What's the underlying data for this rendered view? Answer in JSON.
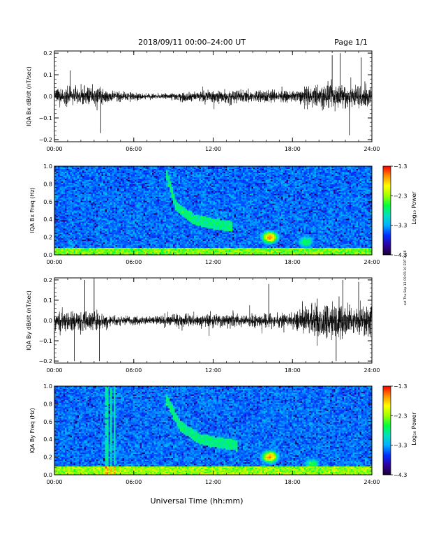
{
  "header": {
    "title": "2018/09/11  00:00–24:00 UT",
    "page": "Page 1/1"
  },
  "xlabel": "Universal Time (hh:mm)",
  "side_note": "ext Thu Sep 13 09:05:10 EDT 2018",
  "chart_data": [
    {
      "type": "line",
      "title": "",
      "xlabel": "",
      "ylabel": "IQA Bx dB/dt (nT/sec)",
      "x_ticks": [
        "00:00",
        "06:00",
        "12:00",
        "18:00",
        "24:00"
      ],
      "x_tick_values": [
        0,
        6,
        12,
        18,
        24
      ],
      "xlim": [
        0,
        24
      ],
      "y_ticks": [
        "0.2",
        "0.1",
        "0.0",
        "−0.1",
        "−0.2"
      ],
      "y_tick_values": [
        0.2,
        0.1,
        0.0,
        -0.1,
        -0.2
      ],
      "ylim": [
        -0.21,
        0.21
      ],
      "envelope_hours": [
        0,
        1,
        2,
        3,
        4,
        5,
        6,
        7,
        8,
        9,
        10,
        11,
        12,
        13,
        14,
        15,
        16,
        17,
        18,
        19,
        20,
        21,
        22,
        23,
        24
      ],
      "envelope_amplitude": [
        0.04,
        0.06,
        0.05,
        0.06,
        0.04,
        0.03,
        0.025,
        0.02,
        0.015,
        0.025,
        0.03,
        0.035,
        0.04,
        0.045,
        0.04,
        0.04,
        0.045,
        0.035,
        0.03,
        0.06,
        0.07,
        0.08,
        0.09,
        0.08,
        0.07
      ],
      "spikes": [
        {
          "t": 1.2,
          "v": 0.12
        },
        {
          "t": 3.5,
          "v": -0.17
        },
        {
          "t": 21.0,
          "v": 0.19
        },
        {
          "t": 21.6,
          "v": 0.2
        },
        {
          "t": 22.3,
          "v": -0.18
        },
        {
          "t": 23.2,
          "v": 0.18
        }
      ]
    },
    {
      "type": "heatmap",
      "title": "",
      "xlabel": "",
      "ylabel": "IQA Bx Freq (Hz)",
      "x_ticks": [
        "00:00",
        "06:00",
        "12:00",
        "18:00",
        "24:00"
      ],
      "x_tick_values": [
        0,
        6,
        12,
        18,
        24
      ],
      "xlim": [
        0,
        24
      ],
      "y_ticks": [
        "1.0",
        "0.8",
        "0.6",
        "0.4",
        "0.2",
        "0.0"
      ],
      "y_tick_values": [
        1.0,
        0.8,
        0.6,
        0.4,
        0.2,
        0.0
      ],
      "ylim": [
        0,
        1.0
      ],
      "colorbar_label": "Log₁₀ Power",
      "colorbar_ticks": [
        "−1.3",
        "−2.3",
        "−3.3",
        "−4.3"
      ],
      "colorbar_tick_values": [
        -1.3,
        -2.3,
        -3.3,
        -4.3
      ],
      "features": [
        {
          "type": "band",
          "t": [
            8.5,
            9.2,
            10.5,
            12.0,
            13.5
          ],
          "f": [
            0.9,
            0.55,
            0.4,
            0.35,
            0.32
          ],
          "power": -2.8
        },
        {
          "type": "blob",
          "t": 16.3,
          "f": 0.2,
          "power": -1.6
        },
        {
          "type": "blob",
          "t": 19.0,
          "f": 0.15,
          "power": -2.6
        },
        {
          "type": "base",
          "f_max": 0.08,
          "power": -2.4
        }
      ]
    },
    {
      "type": "line",
      "title": "",
      "xlabel": "",
      "ylabel": "IQA By dB/dt (nT/sec)",
      "x_ticks": [
        "00:00",
        "06:00",
        "12:00",
        "18:00",
        "24:00"
      ],
      "x_tick_values": [
        0,
        6,
        12,
        18,
        24
      ],
      "xlim": [
        0,
        24
      ],
      "y_ticks": [
        "0.2",
        "0.1",
        "0.0",
        "−0.1",
        "−0.2"
      ],
      "y_tick_values": [
        0.2,
        0.1,
        0.0,
        -0.1,
        -0.2
      ],
      "ylim": [
        -0.21,
        0.21
      ],
      "envelope_hours": [
        0,
        1,
        2,
        3,
        4,
        5,
        6,
        7,
        8,
        9,
        10,
        11,
        12,
        13,
        14,
        15,
        16,
        17,
        18,
        19,
        20,
        21,
        22,
        23,
        24
      ],
      "envelope_amplitude": [
        0.05,
        0.08,
        0.06,
        0.07,
        0.04,
        0.035,
        0.03,
        0.03,
        0.035,
        0.04,
        0.04,
        0.04,
        0.045,
        0.045,
        0.04,
        0.045,
        0.05,
        0.045,
        0.04,
        0.1,
        0.12,
        0.12,
        0.12,
        0.1,
        0.1
      ],
      "spikes": [
        {
          "t": 1.5,
          "v": -0.2
        },
        {
          "t": 2.3,
          "v": 0.2
        },
        {
          "t": 3.0,
          "v": 0.2
        },
        {
          "t": 3.4,
          "v": -0.2
        },
        {
          "t": 16.2,
          "v": 0.18
        },
        {
          "t": 21.3,
          "v": -0.2
        },
        {
          "t": 21.8,
          "v": 0.2
        },
        {
          "t": 23.0,
          "v": 0.19
        }
      ]
    },
    {
      "type": "heatmap",
      "title": "",
      "xlabel": "",
      "ylabel": "IQA By Freq (Hz)",
      "x_ticks": [
        "00:00",
        "06:00",
        "12:00",
        "18:00",
        "24:00"
      ],
      "x_tick_values": [
        0,
        6,
        12,
        18,
        24
      ],
      "xlim": [
        0,
        24
      ],
      "y_ticks": [
        "1.0",
        "0.8",
        "0.6",
        "0.4",
        "0.2",
        "0.0"
      ],
      "y_tick_values": [
        1.0,
        0.8,
        0.6,
        0.4,
        0.2,
        0.0
      ],
      "ylim": [
        0,
        1.0
      ],
      "colorbar_label": "Log₁₀ Power",
      "colorbar_ticks": [
        "−1.3",
        "−2.3",
        "−3.3",
        "−4.3"
      ],
      "colorbar_tick_values": [
        -1.3,
        -2.3,
        -3.3,
        -4.3
      ],
      "features": [
        {
          "type": "band",
          "t": [
            8.5,
            9.5,
            11.0,
            12.5,
            13.8
          ],
          "f": [
            0.85,
            0.55,
            0.4,
            0.36,
            0.33
          ],
          "power": -2.8
        },
        {
          "type": "blob",
          "t": 16.3,
          "f": 0.2,
          "power": -1.6
        },
        {
          "type": "blob",
          "t": 19.5,
          "f": 0.12,
          "power": -2.6
        },
        {
          "type": "stripes",
          "t": [
            3.9,
            4.0,
            4.3,
            4.5
          ],
          "power": -3.0
        },
        {
          "type": "base",
          "f_max": 0.1,
          "power": -2.3
        }
      ]
    }
  ],
  "colors": {
    "colormap": [
      "#1a0033",
      "#3000a0",
      "#0030ff",
      "#00b0ff",
      "#00e0c0",
      "#00ff40",
      "#a0ff00",
      "#ffff00",
      "#ff9000",
      "#ff0000"
    ]
  }
}
